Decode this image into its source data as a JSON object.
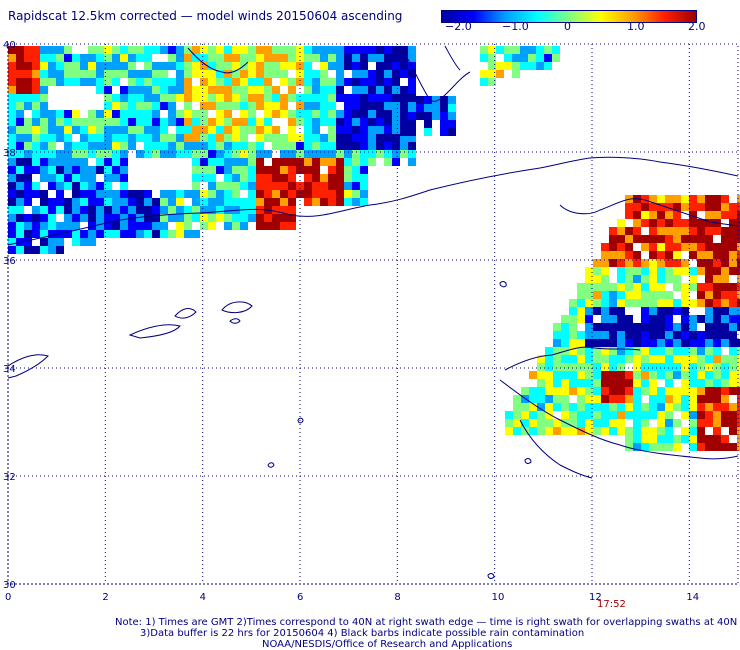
{
  "title": "Rapidscat 12.5km corrected — model winds 20150604 ascending",
  "colorbar": {
    "labels": [
      "−2.0",
      "−1.0",
      "0",
      "1.0",
      "2.0"
    ],
    "colors": [
      "#0000a0",
      "#0000ff",
      "#00a0ff",
      "#00ffff",
      "#80ff80",
      "#ffff00",
      "#ffa000",
      "#ff2000",
      "#a00000"
    ]
  },
  "map": {
    "lat_ticks": [
      "40",
      "38",
      "36",
      "34",
      "32",
      "30"
    ],
    "lon_ticks": [
      "0",
      "2",
      "4",
      "6",
      "8",
      "10",
      "12",
      "14"
    ],
    "time_label": "17:52"
  },
  "notes": {
    "line1": "Note: 1) Times are GMT 2)Times correspond to 40N at right swath edge — time is right swath for overlapping swaths at 40N",
    "line2": "3)Data buffer is 22 hrs for 20150604 4) Black barbs indicate possible rain contamination",
    "line3": "NOAA/NESDIS/Office of Research and Applications"
  }
}
